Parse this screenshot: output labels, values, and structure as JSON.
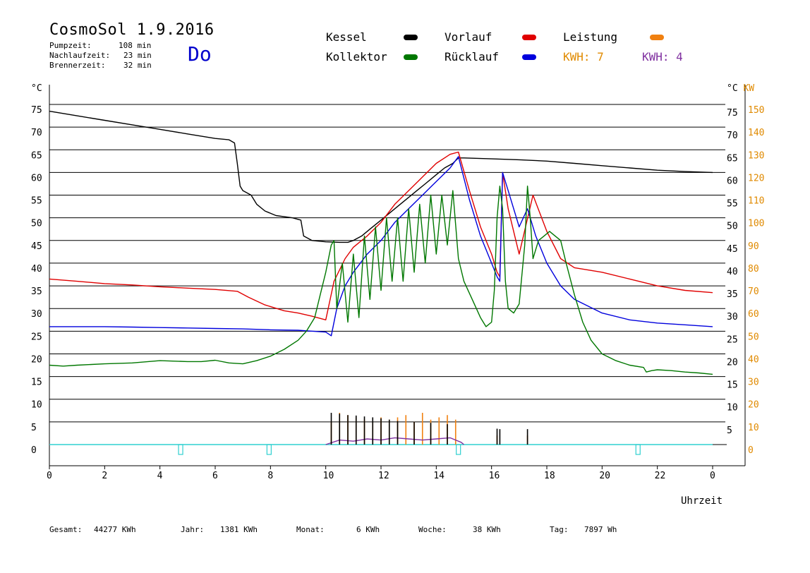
{
  "header": {
    "title": "CosmoSol 1.9.2016",
    "day": "Do",
    "pump_label": "Pumpzeit:",
    "pump_value": "108 min",
    "after_label": "Nachlaufzeit:",
    "after_value": "23 min",
    "burner_label": "Brennerzeit:",
    "burner_value": "32 min"
  },
  "legend": {
    "kessel": "Kessel",
    "vorlauf": "Vorlauf",
    "leistung": "Leistung",
    "kollektor": "Kollektor",
    "ruecklauf": "Rücklauf",
    "kwh_orange": "KWH: 7",
    "kwh_purple": "KWH: 4"
  },
  "colors": {
    "kessel": "#000000",
    "vorlauf": "#e00000",
    "leistung": "#f08010",
    "kollektor": "#007700",
    "ruecklauf": "#0000dd",
    "kwh_purple": "#8030a0",
    "baseline": "#30d0d0",
    "kw_axis": "#e08a00"
  },
  "footer": {
    "gesamt_label": "Gesamt:",
    "gesamt_value": "44277 KWh",
    "jahr_label": "Jahr:",
    "jahr_value": "1381 KWh",
    "monat_label": "Monat:",
    "monat_value": "6 KWh",
    "woche_label": "Woche:",
    "woche_value": "38 KWh",
    "tag_label": "Tag:",
    "tag_value": "7897 Wh"
  },
  "chart_data": {
    "type": "line",
    "xlabel": "Uhrzeit",
    "ylabel_left": "°C",
    "ylabel_right": "°C KW",
    "xlim": [
      0,
      24
    ],
    "ylim": [
      0,
      75
    ],
    "y2lim": [
      0,
      150
    ],
    "x_ticks": [
      "0",
      "2",
      "4",
      "6",
      "8",
      "10",
      "12",
      "14",
      "16",
      "18",
      "20",
      "22",
      "0"
    ],
    "y_ticks_left": [
      "0",
      "5",
      "10",
      "15",
      "20",
      "25",
      "30",
      "35",
      "40",
      "45",
      "50",
      "55",
      "60",
      "65",
      "70",
      "75"
    ],
    "y_ticks_right": [
      "5",
      "10",
      "15",
      "20",
      "25",
      "30",
      "35",
      "40",
      "45",
      "50",
      "55",
      "60",
      "65",
      "70",
      "75"
    ],
    "y2_ticks": [
      "0",
      "10",
      "20",
      "30",
      "40",
      "50",
      "60",
      "70",
      "80",
      "90",
      "100",
      "110",
      "120",
      "130",
      "140",
      "150"
    ],
    "grid": true,
    "series": [
      {
        "name": "Kessel",
        "color": "kessel",
        "style": "smooth",
        "x": [
          0,
          1,
          2,
          3,
          4,
          5,
          6,
          6.5,
          6.7,
          6.8,
          6.9,
          7.0,
          7.3,
          7.5,
          7.8,
          8.2,
          8.8,
          9.1,
          9.2,
          9.5,
          10.0,
          10.5,
          10.8,
          11,
          11.3,
          11.6,
          12,
          12.3,
          12.6,
          13,
          13.3,
          13.6,
          14,
          14.3,
          14.6,
          14.8,
          15,
          16,
          17,
          18,
          19,
          20,
          21,
          22,
          23,
          24
        ],
        "y": [
          73.5,
          72.5,
          71.5,
          70.5,
          69.5,
          68.5,
          67.5,
          67.2,
          66.5,
          62,
          57,
          56,
          55,
          53,
          51.5,
          50.5,
          50,
          49.5,
          46,
          45,
          44.7,
          44.6,
          44.6,
          45,
          46,
          47.5,
          49.5,
          51,
          52.5,
          54.5,
          56,
          57.5,
          59.5,
          61,
          62,
          63.2,
          63.2,
          63,
          62.8,
          62.5,
          62,
          61.5,
          61,
          60.5,
          60.2,
          60
        ]
      },
      {
        "name": "Vorlauf",
        "color": "vorlauf",
        "style": "smooth",
        "x": [
          0,
          1,
          2,
          3,
          4,
          5,
          6,
          6.8,
          7.2,
          7.8,
          8.5,
          9,
          9.5,
          10,
          10.3,
          10.7,
          11,
          11.5,
          12,
          12.5,
          13,
          13.5,
          14,
          14.5,
          14.8,
          15.2,
          15.6,
          16,
          16.2,
          16.3,
          16.4,
          16.6,
          17,
          17.5,
          18,
          18.5,
          19,
          20,
          21,
          22,
          23,
          24
        ],
        "y": [
          36.5,
          36,
          35.5,
          35.2,
          34.8,
          34.5,
          34.2,
          33.8,
          32.5,
          30.8,
          29.5,
          29,
          28.3,
          27.5,
          36,
          41,
          43.5,
          46,
          49,
          53,
          56,
          59,
          62,
          64,
          64.5,
          56,
          48,
          42,
          38,
          37,
          60,
          52,
          42,
          55,
          47,
          41,
          39,
          38,
          36.5,
          35,
          34,
          33.5
        ]
      },
      {
        "name": "Rücklauf",
        "color": "ruecklauf",
        "style": "smooth",
        "x": [
          0,
          1,
          2,
          3,
          4,
          5,
          6,
          7,
          8,
          9,
          9.5,
          10,
          10.2,
          10.4,
          10.7,
          11,
          11.5,
          12,
          12.5,
          13,
          13.5,
          14,
          14.5,
          14.8,
          15.2,
          15.6,
          16,
          16.2,
          16.3,
          16.4,
          16.6,
          17,
          17.3,
          17.6,
          18,
          18.5,
          19,
          20,
          21,
          22,
          23,
          24
        ],
        "y": [
          26,
          26,
          26,
          25.9,
          25.8,
          25.7,
          25.6,
          25.5,
          25.3,
          25.2,
          25,
          24.8,
          24,
          30,
          35,
          38,
          42,
          45,
          49,
          52,
          55,
          58,
          61,
          63.5,
          54,
          46,
          40,
          37,
          36,
          60,
          56,
          48,
          52,
          46,
          40,
          35,
          32,
          29,
          27.5,
          26.8,
          26.4,
          26
        ]
      },
      {
        "name": "Kollektor",
        "color": "kollektor",
        "style": "smooth",
        "x": [
          0,
          0.5,
          1,
          2,
          3,
          4,
          5,
          5.5,
          6,
          6.5,
          7,
          7.5,
          8,
          8.5,
          9,
          9.3,
          9.6,
          9.8,
          10,
          10.2,
          10.3,
          10.4,
          10.6,
          10.8,
          11,
          11.2,
          11.4,
          11.6,
          11.8,
          12,
          12.2,
          12.4,
          12.6,
          12.8,
          13,
          13.2,
          13.4,
          13.6,
          13.8,
          14,
          14.2,
          14.4,
          14.6,
          14.8,
          15,
          15.3,
          15.6,
          15.8,
          16,
          16.1,
          16.2,
          16.3,
          16.4,
          16.5,
          16.6,
          16.8,
          17,
          17.2,
          17.3,
          17.4,
          17.5,
          17.7,
          17.9,
          18.1,
          18.3,
          18.5,
          18.7,
          19,
          19.3,
          19.6,
          20,
          20.5,
          21,
          21.5,
          21.6,
          21.8,
          22,
          22.5,
          23,
          23.5,
          24
        ],
        "y": [
          17.5,
          17.3,
          17.5,
          17.8,
          18,
          18.5,
          18.3,
          18.3,
          18.6,
          18,
          17.8,
          18.5,
          19.5,
          21,
          23,
          25,
          28,
          33,
          38,
          44,
          45,
          30,
          40,
          27,
          42,
          28,
          46,
          32,
          48,
          34,
          50,
          36,
          50,
          36,
          52,
          38,
          53,
          40,
          55,
          42,
          55,
          44,
          56,
          41,
          36,
          32,
          28,
          26,
          27,
          34,
          50,
          57,
          52,
          36,
          30,
          29,
          31,
          44,
          57,
          50,
          41,
          45,
          46,
          47,
          46,
          45,
          40,
          33,
          27,
          23,
          20,
          18.5,
          17.5,
          17,
          16,
          16.3,
          16.5,
          16.3,
          16,
          15.8,
          15.5
        ]
      },
      {
        "name": "Leistung",
        "color": "leistung",
        "style": "spikes",
        "axis": "right",
        "x": [
          10.2,
          10.5,
          10.8,
          11.1,
          11.4,
          11.7,
          12.0,
          12.3,
          12.6,
          12.9,
          13.2,
          13.5,
          13.8,
          14.1,
          14.4,
          14.7,
          16.2,
          17.3
        ],
        "y": [
          10,
          14,
          13,
          12,
          11,
          10,
          12,
          11,
          12,
          13,
          10,
          14,
          11,
          12,
          13,
          11,
          4,
          4
        ]
      },
      {
        "name": "KWH",
        "color": "kwh_purple",
        "style": "smooth",
        "axis": "right",
        "x": [
          10,
          10.5,
          11,
          11.5,
          12,
          12.5,
          13,
          13.5,
          14,
          14.5,
          14.9,
          15
        ],
        "y": [
          0,
          2,
          1.5,
          2.5,
          2,
          3,
          2.5,
          2,
          2.5,
          3,
          1,
          0
        ]
      },
      {
        "name": "Kessel-Brenner",
        "color": "kessel",
        "style": "spikes",
        "x": [
          10.2,
          10.5,
          10.8,
          11.1,
          11.4,
          11.7,
          12.0,
          12.3,
          12.6,
          13.2,
          13.8,
          14.4,
          16.2,
          16.3,
          17.3
        ],
        "y": [
          7,
          6.8,
          6.5,
          6.4,
          6.2,
          6.0,
          5.8,
          5.5,
          5.2,
          5.0,
          4.8,
          4.5,
          3.5,
          3.4,
          3.4
        ]
      }
    ],
    "markers_x": [
      4.75,
      7.95,
      14.8,
      21.3
    ]
  }
}
